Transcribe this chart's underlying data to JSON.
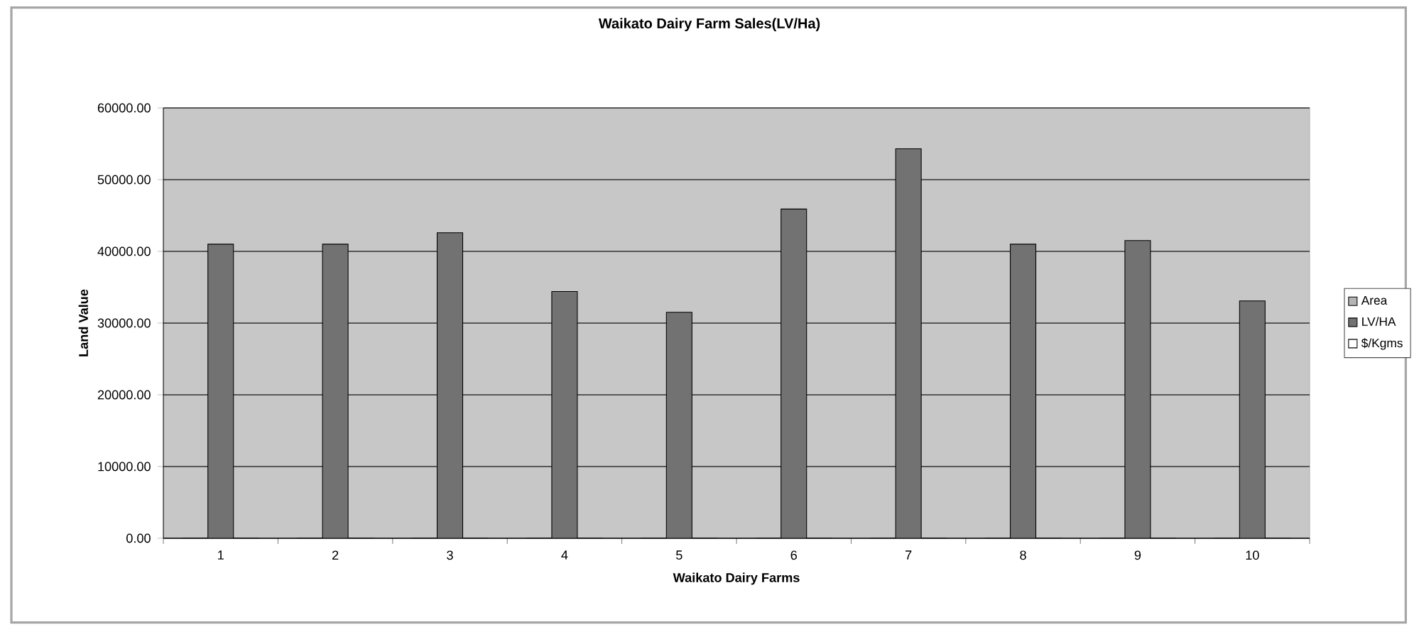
{
  "chart_data": {
    "type": "bar",
    "title": "Waikato Dairy Farm Sales(LV/Ha)",
    "xlabel": "Waikato Dairy Farms",
    "ylabel": "Land Value",
    "categories": [
      "1",
      "2",
      "3",
      "4",
      "5",
      "6",
      "7",
      "8",
      "9",
      "10"
    ],
    "series": [
      {
        "name": "Area",
        "color": "#b4b4b4",
        "values": [
          0,
          0,
          0,
          0,
          0,
          0,
          0,
          0,
          0,
          0
        ]
      },
      {
        "name": "LV/HA",
        "color": "#727272",
        "values": [
          41000,
          41000,
          42600,
          34400,
          31500,
          45900,
          54300,
          41000,
          41500,
          33100
        ]
      },
      {
        "name": "$/Kgms",
        "color": "#ffffff",
        "values": [
          0,
          0,
          0,
          0,
          0,
          0,
          0,
          0,
          0,
          0
        ]
      }
    ],
    "ylim": [
      0,
      60000
    ],
    "yticks": [
      {
        "value": 0,
        "label": "0.00"
      },
      {
        "value": 10000,
        "label": "10000.00"
      },
      {
        "value": 20000,
        "label": "20000.00"
      },
      {
        "value": 30000,
        "label": "30000.00"
      },
      {
        "value": 40000,
        "label": "40000.00"
      },
      {
        "value": 50000,
        "label": "50000.00"
      },
      {
        "value": 60000,
        "label": "60000.00"
      }
    ],
    "grid": "y",
    "legend": "right"
  }
}
